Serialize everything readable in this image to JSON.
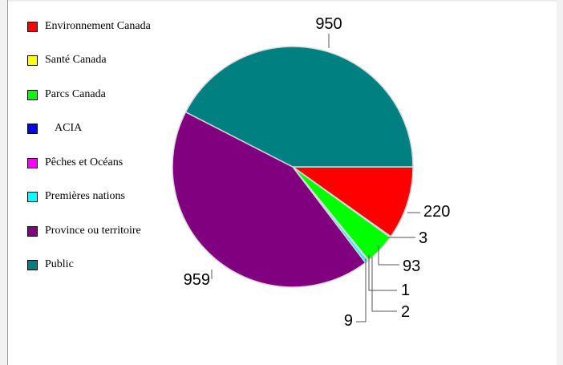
{
  "chart_data": {
    "type": "pie",
    "title": "",
    "legend_position": "left",
    "slices": [
      {
        "label": "Environnement Canada",
        "value": 220,
        "color": "#ff0000"
      },
      {
        "label": "Santé Canada",
        "value": 3,
        "color": "#ffff00"
      },
      {
        "label": "Parcs Canada",
        "value": 93,
        "color": "#00ff00"
      },
      {
        "label": "ACIA",
        "value": 1,
        "color": "#0000ff"
      },
      {
        "label": "Pêches et Océans",
        "value": 2,
        "color": "#ff00ff"
      },
      {
        "label": "Premières nations",
        "value": 9,
        "color": "#00ffff"
      },
      {
        "label": "Province ou territoire",
        "value": 959,
        "color": "#800080"
      },
      {
        "label": "Public",
        "value": 950,
        "color": "#008080"
      }
    ]
  }
}
